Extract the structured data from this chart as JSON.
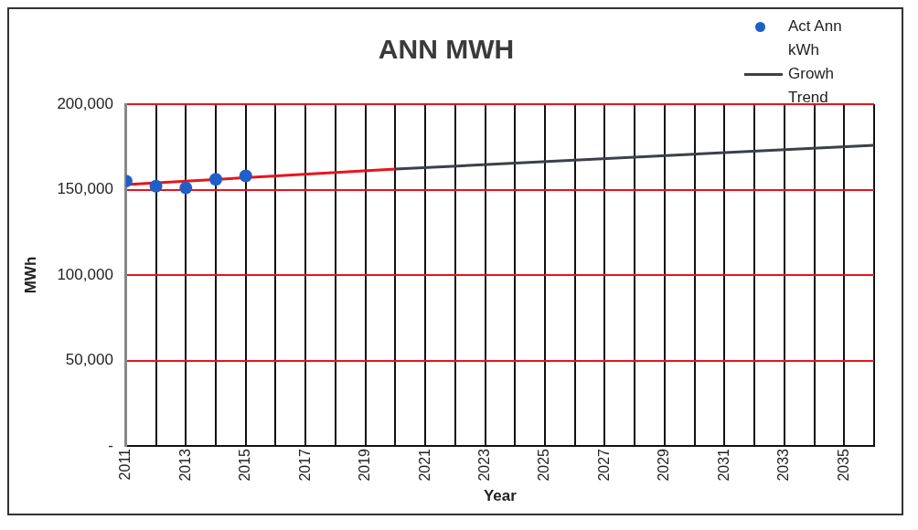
{
  "chart_data": {
    "type": "scatter",
    "title": "ANN MWH",
    "xlabel": "Year",
    "ylabel": "MWh",
    "xlim": [
      2011,
      2036
    ],
    "xticks": [
      2011,
      {
        "value": 2012,
        "label": null
      },
      2013,
      {
        "value": 2014,
        "label": null
      },
      2015,
      {
        "value": 2016,
        "label": null
      },
      2017,
      {
        "value": 2018,
        "label": null
      },
      2019,
      {
        "value": 2020,
        "label": null
      },
      2021,
      {
        "value": 2022,
        "label": null
      },
      2023,
      {
        "value": 2024,
        "label": null
      },
      2025,
      {
        "value": 2026,
        "label": null
      },
      2027,
      {
        "value": 2028,
        "label": null
      },
      2029,
      {
        "value": 2030,
        "label": null
      },
      2031,
      {
        "value": 2032,
        "label": null
      },
      2033,
      {
        "value": 2034,
        "label": null
      },
      2035,
      {
        "value": 2036,
        "label": null
      }
    ],
    "ylim": [
      0,
      200000
    ],
    "yticks": [
      {
        "value": 0,
        "label": "-"
      },
      {
        "value": 50000,
        "label": "50,000"
      },
      {
        "value": 100000,
        "label": "100,000"
      },
      {
        "value": 150000,
        "label": "150,000"
      },
      {
        "value": 200000,
        "label": "200,000"
      }
    ],
    "grid": true,
    "legend": "top right",
    "series": [
      {
        "name": "Act Ann kWh",
        "color": "#1f5fc8",
        "x": [
          2011,
          2012,
          2013,
          2014,
          2015
        ],
        "values": [
          155000,
          152000,
          151000,
          156000,
          158000
        ],
        "marker": "circle"
      },
      {
        "type": "line",
        "color": "#e8141c",
        "x": [
          2011,
          2020
        ],
        "values": [
          153000,
          162000
        ],
        "line_style": "solid",
        "marker": "none"
      },
      {
        "type": "line",
        "name": "Growh Trend",
        "color": "#3c4048",
        "x": [
          2020,
          2036
        ],
        "values": [
          162000,
          176000
        ],
        "line_style": "solid",
        "marker": "none"
      }
    ]
  }
}
